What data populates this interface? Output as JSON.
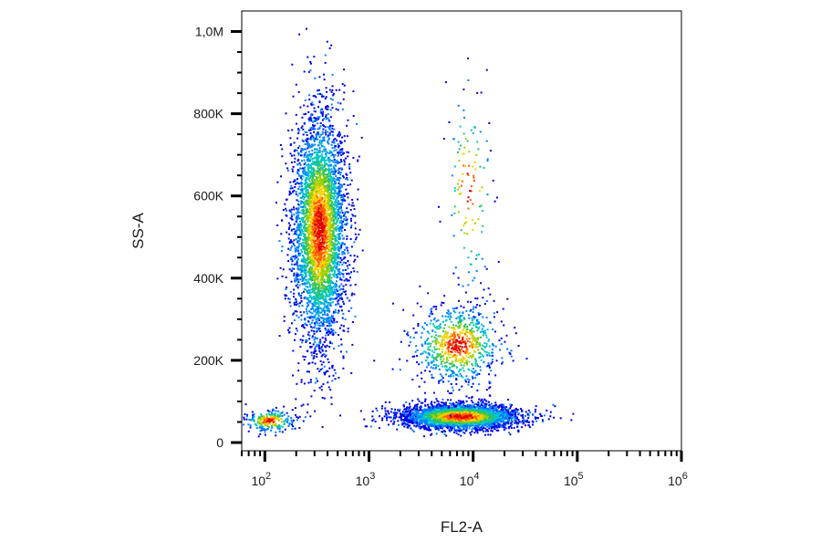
{
  "chart_data": {
    "type": "scatter",
    "title": "",
    "xlabel": "FL2-A",
    "ylabel": "SS-A",
    "x_scale": "log",
    "xlim": [
      60,
      1000000
    ],
    "ylim": [
      -20000,
      1050000
    ],
    "x_ticks": [
      {
        "value": 100,
        "base": "10",
        "exp": "2"
      },
      {
        "value": 1000,
        "base": "10",
        "exp": "3"
      },
      {
        "value": 10000,
        "base": "10",
        "exp": "4"
      },
      {
        "value": 100000,
        "base": "10",
        "exp": "5"
      },
      {
        "value": 1000000,
        "base": "10",
        "exp": "6"
      }
    ],
    "y_ticks": [
      {
        "value": 0,
        "label": "0"
      },
      {
        "value": 200000,
        "label": "200K"
      },
      {
        "value": 400000,
        "label": "400K"
      },
      {
        "value": 600000,
        "label": "600K"
      },
      {
        "value": 800000,
        "label": "800K"
      },
      {
        "value": 1000000,
        "label": "1,0M"
      }
    ],
    "grid": false,
    "colormap": [
      "#0000e6",
      "#0080ff",
      "#00c8c8",
      "#30c060",
      "#a0d000",
      "#ffd000",
      "#ff6000",
      "#e00000"
    ],
    "populations": [
      {
        "x_center": 330,
        "y_center": 520000,
        "x_spread_log": 0.13,
        "y_spread": 140000,
        "count": 4200
      },
      {
        "x_center": 7500,
        "y_center": 65000,
        "x_spread_log": 0.28,
        "y_spread": 15000,
        "count": 3200
      },
      {
        "x_center": 7000,
        "y_center": 240000,
        "x_spread_log": 0.22,
        "y_spread": 50000,
        "count": 800
      },
      {
        "x_center": 110,
        "y_center": 55000,
        "x_spread_log": 0.12,
        "y_spread": 14000,
        "count": 250
      },
      {
        "x_center": 9000,
        "y_center": 620000,
        "x_spread_log": 0.12,
        "y_spread": 130000,
        "count": 130
      }
    ]
  }
}
